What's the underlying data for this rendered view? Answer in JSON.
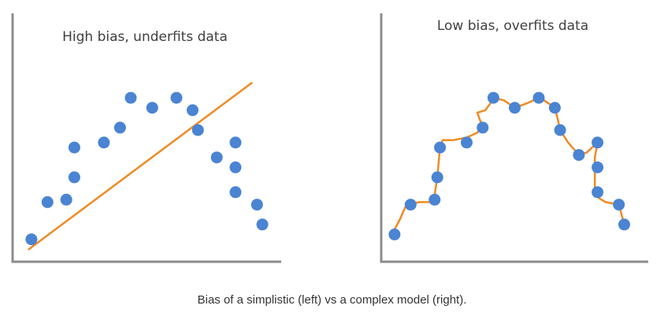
{
  "caption": "Bias of a simplistic (left) vs a complex model (right).",
  "colors": {
    "axis": "#8c8c8c",
    "point": "#4a84d2",
    "fit": "#f08a24"
  },
  "chart_data": [
    {
      "type": "scatter",
      "title": "High bias, underfits data",
      "xlim": [
        0,
        100
      ],
      "ylim": [
        0,
        100
      ],
      "points": [
        {
          "x": 7,
          "y": 9
        },
        {
          "x": 13,
          "y": 24
        },
        {
          "x": 20,
          "y": 25
        },
        {
          "x": 23,
          "y": 34
        },
        {
          "x": 23,
          "y": 46
        },
        {
          "x": 34,
          "y": 48
        },
        {
          "x": 40,
          "y": 54
        },
        {
          "x": 44,
          "y": 66
        },
        {
          "x": 52,
          "y": 62
        },
        {
          "x": 61,
          "y": 66
        },
        {
          "x": 67,
          "y": 61
        },
        {
          "x": 69,
          "y": 53
        },
        {
          "x": 76,
          "y": 42
        },
        {
          "x": 83,
          "y": 48
        },
        {
          "x": 83,
          "y": 38
        },
        {
          "x": 83,
          "y": 28
        },
        {
          "x": 91,
          "y": 23
        },
        {
          "x": 93,
          "y": 15
        }
      ],
      "fit": {
        "kind": "linear",
        "line": [
          {
            "x": 6,
            "y": 5
          },
          {
            "x": 89,
            "y": 72
          }
        ]
      }
    },
    {
      "type": "scatter",
      "title": "Low bias, overfits data",
      "xlim": [
        0,
        100
      ],
      "ylim": [
        0,
        100
      ],
      "points": [
        {
          "x": 5,
          "y": 11
        },
        {
          "x": 11,
          "y": 23
        },
        {
          "x": 20,
          "y": 25
        },
        {
          "x": 21,
          "y": 34
        },
        {
          "x": 22,
          "y": 46
        },
        {
          "x": 32,
          "y": 48
        },
        {
          "x": 38,
          "y": 54
        },
        {
          "x": 42,
          "y": 66
        },
        {
          "x": 50,
          "y": 62
        },
        {
          "x": 59,
          "y": 66
        },
        {
          "x": 65,
          "y": 62
        },
        {
          "x": 67,
          "y": 53
        },
        {
          "x": 74,
          "y": 43
        },
        {
          "x": 81,
          "y": 48
        },
        {
          "x": 81,
          "y": 38
        },
        {
          "x": 81,
          "y": 28
        },
        {
          "x": 89,
          "y": 23
        },
        {
          "x": 91,
          "y": 15
        }
      ],
      "fit": {
        "kind": "overfit",
        "line": [
          {
            "x": 5,
            "y": 13
          },
          {
            "x": 7,
            "y": 17
          },
          {
            "x": 9,
            "y": 22
          },
          {
            "x": 11,
            "y": 23
          },
          {
            "x": 14,
            "y": 24
          },
          {
            "x": 18,
            "y": 24
          },
          {
            "x": 20,
            "y": 27
          },
          {
            "x": 21,
            "y": 34
          },
          {
            "x": 22,
            "y": 46
          },
          {
            "x": 23,
            "y": 49
          },
          {
            "x": 27,
            "y": 49
          },
          {
            "x": 32,
            "y": 50
          },
          {
            "x": 36,
            "y": 52
          },
          {
            "x": 38,
            "y": 55
          },
          {
            "x": 37,
            "y": 57
          },
          {
            "x": 36,
            "y": 60
          },
          {
            "x": 39,
            "y": 61
          },
          {
            "x": 41,
            "y": 64
          },
          {
            "x": 42,
            "y": 66
          },
          {
            "x": 46,
            "y": 65
          },
          {
            "x": 50,
            "y": 62
          },
          {
            "x": 55,
            "y": 64
          },
          {
            "x": 59,
            "y": 66
          },
          {
            "x": 61,
            "y": 65
          },
          {
            "x": 65,
            "y": 62
          },
          {
            "x": 66,
            "y": 58
          },
          {
            "x": 67,
            "y": 53
          },
          {
            "x": 70,
            "y": 48
          },
          {
            "x": 74,
            "y": 43
          },
          {
            "x": 77,
            "y": 44
          },
          {
            "x": 79,
            "y": 46
          },
          {
            "x": 81,
            "y": 48
          },
          {
            "x": 80,
            "y": 42
          },
          {
            "x": 80,
            "y": 36
          },
          {
            "x": 80,
            "y": 30
          },
          {
            "x": 81,
            "y": 26
          },
          {
            "x": 84,
            "y": 24
          },
          {
            "x": 89,
            "y": 23
          },
          {
            "x": 91,
            "y": 15
          }
        ]
      }
    }
  ]
}
